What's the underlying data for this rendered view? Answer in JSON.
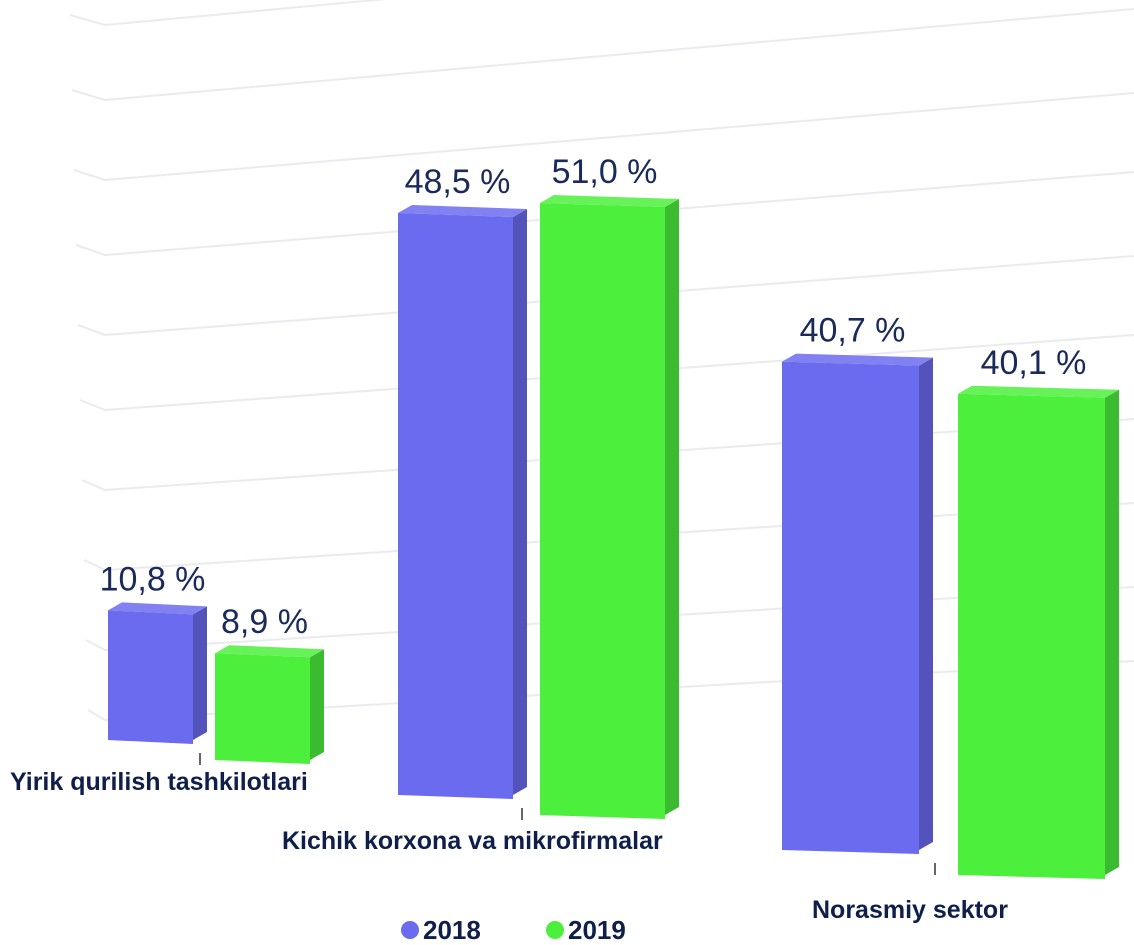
{
  "chart_data": {
    "type": "bar",
    "categories": [
      "Yirik qurilish tashkilotlari",
      "Kichik korxona va mikrofirmalar",
      "Norasmiy sektor"
    ],
    "series": [
      {
        "name": "2018",
        "values": [
          10.8,
          48.5,
          40.7
        ],
        "labels": [
          "10,8 %",
          "48,5 %",
          "40,7 %"
        ],
        "color": "#6b6bf0"
      },
      {
        "name": "2019",
        "values": [
          8.9,
          51.0,
          40.1
        ],
        "labels": [
          "8,9 %",
          "51,0 %",
          "40,1 %"
        ],
        "color": "#4cf03c"
      }
    ],
    "ylim": [
      0,
      55
    ],
    "grid": true,
    "legend": "bottom-center",
    "style": "3d-perspective"
  }
}
